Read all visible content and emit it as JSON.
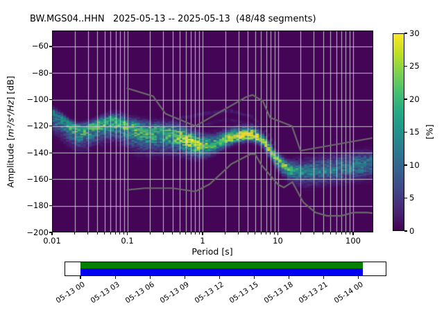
{
  "figure": {
    "title": "BW.MGS04..HHN   2025-05-13 -- 2025-05-13  (48/48 segments)"
  },
  "axes": {
    "xlabel": "Period [s]",
    "ylabel_prefix": "Amplitude [",
    "ylabel_math": "m²/s⁴/Hz",
    "ylabel_suffix": "] [dB]",
    "x_major_ticks": [
      {
        "value": 0.01,
        "label": "0.01"
      },
      {
        "value": 0.1,
        "label": "0.1"
      },
      {
        "value": 1,
        "label": "1"
      },
      {
        "value": 10,
        "label": "10"
      },
      {
        "value": 100,
        "label": "100"
      }
    ],
    "y_ticks": [
      {
        "value": -60,
        "label": "−60"
      },
      {
        "value": -80,
        "label": "−80"
      },
      {
        "value": -100,
        "label": "−100"
      },
      {
        "value": -120,
        "label": "−120"
      },
      {
        "value": -140,
        "label": "−140"
      },
      {
        "value": -160,
        "label": "−160"
      },
      {
        "value": -180,
        "label": "−180"
      },
      {
        "value": -200,
        "label": "−200"
      }
    ]
  },
  "colorbar": {
    "label": "[%]",
    "min": 0,
    "max": 30,
    "ticks": [
      0,
      5,
      10,
      15,
      20,
      25,
      30
    ],
    "cmap": "viridis",
    "cmap_stops": [
      [
        0.0,
        "#440154"
      ],
      [
        0.1,
        "#482475"
      ],
      [
        0.2,
        "#414487"
      ],
      [
        0.3,
        "#355f8d"
      ],
      [
        0.4,
        "#2a788e"
      ],
      [
        0.5,
        "#21918c"
      ],
      [
        0.6,
        "#22a884"
      ],
      [
        0.7,
        "#44bf70"
      ],
      [
        0.8,
        "#7ad151"
      ],
      [
        0.9,
        "#bddf26"
      ],
      [
        1.0,
        "#fde725"
      ]
    ]
  },
  "style": {
    "plot_bg": "#440556",
    "grid_color": "rgba(214,210,220,0.9)",
    "noise_model_color": "#6b6b6b",
    "frame_color": "#000000"
  },
  "chart_data": {
    "type": "heatmap",
    "title": "BW.MGS04..HHN   2025-05-13 -- 2025-05-13  (48/48 segments)",
    "xlabel": "Period [s]",
    "ylabel": "Amplitude [m²/s⁴/Hz] [dB]",
    "x_scale": "log",
    "xlim": [
      0.01,
      185
    ],
    "ylim": [
      -200,
      -48
    ],
    "grid": true,
    "colorbar_label": "[%]",
    "colorbar_range": [
      0,
      30
    ],
    "period_step_octaves": 0.125,
    "db_bin_width": 1,
    "mode_curve_points_period_db_percent": [
      [
        0.01,
        -109.5,
        14
      ],
      [
        0.013,
        -113.5,
        15
      ],
      [
        0.017,
        -118.5,
        17
      ],
      [
        0.023,
        -122,
        19
      ],
      [
        0.03,
        -121,
        19
      ],
      [
        0.042,
        -118,
        19
      ],
      [
        0.06,
        -115.5,
        20
      ],
      [
        0.08,
        -116.5,
        19
      ],
      [
        0.1,
        -119.5,
        20
      ],
      [
        0.14,
        -122,
        20
      ],
      [
        0.2,
        -123.5,
        19
      ],
      [
        0.28,
        -124.5,
        18
      ],
      [
        0.38,
        -125.5,
        19
      ],
      [
        0.48,
        -127.5,
        23
      ],
      [
        0.58,
        -129.5,
        27
      ],
      [
        0.72,
        -132,
        28
      ],
      [
        0.9,
        -134,
        26
      ],
      [
        1.1,
        -135,
        22
      ],
      [
        1.4,
        -134,
        20
      ],
      [
        1.8,
        -131.5,
        22
      ],
      [
        2.3,
        -129,
        25
      ],
      [
        2.9,
        -127.5,
        29
      ],
      [
        3.6,
        -126.8,
        30
      ],
      [
        4.5,
        -126.6,
        30
      ],
      [
        5.4,
        -127.8,
        29
      ],
      [
        6.4,
        -131,
        27
      ],
      [
        7.4,
        -135.5,
        26
      ],
      [
        8.6,
        -140.5,
        25
      ],
      [
        10.0,
        -145.5,
        25
      ],
      [
        12.0,
        -149.5,
        26
      ],
      [
        14.0,
        -152,
        21
      ],
      [
        17.0,
        -153.5,
        16
      ],
      [
        21.0,
        -154,
        13
      ],
      [
        26.0,
        -153.8,
        13
      ],
      [
        33.0,
        -153.2,
        12
      ],
      [
        45.0,
        -152.4,
        12
      ],
      [
        60.0,
        -151.5,
        12
      ],
      [
        80.0,
        -150.5,
        13
      ],
      [
        110,
        -149.5,
        13
      ],
      [
        150,
        -148.5,
        12
      ],
      [
        185,
        -148,
        12
      ]
    ],
    "spread_period_updb_downdb": [
      [
        0.01,
        5,
        16
      ],
      [
        0.02,
        5,
        17
      ],
      [
        0.04,
        6,
        16
      ],
      [
        0.07,
        7,
        16
      ],
      [
        0.1,
        8,
        18
      ],
      [
        0.2,
        9,
        19
      ],
      [
        0.35,
        10,
        17
      ],
      [
        0.55,
        11,
        14
      ],
      [
        0.8,
        11,
        12
      ],
      [
        1.2,
        10,
        9
      ],
      [
        2.0,
        9,
        7
      ],
      [
        3.0,
        8,
        6
      ],
      [
        4.5,
        8,
        6
      ],
      [
        6.0,
        7,
        6
      ],
      [
        8.0,
        6,
        7
      ],
      [
        10,
        6,
        8
      ],
      [
        13,
        7,
        9
      ],
      [
        17,
        9,
        11
      ],
      [
        22,
        11,
        13
      ],
      [
        30,
        12,
        13
      ],
      [
        45,
        12,
        13
      ],
      [
        70,
        12,
        13
      ],
      [
        110,
        12,
        13
      ],
      [
        185,
        12,
        13
      ]
    ],
    "secondary_traces": [
      {
        "percent": 6,
        "width_db": 2,
        "points": [
          [
            0.01,
            -124
          ],
          [
            0.02,
            -134
          ],
          [
            0.04,
            -132
          ],
          [
            0.06,
            -128
          ],
          [
            0.09,
            -130
          ],
          [
            0.15,
            -135
          ],
          [
            0.25,
            -138
          ]
        ]
      },
      {
        "percent": 5,
        "width_db": 2,
        "points": [
          [
            0.1,
            -140
          ],
          [
            0.2,
            -141
          ],
          [
            0.4,
            -141
          ],
          [
            0.7,
            -140
          ],
          [
            1.1,
            -141
          ]
        ]
      },
      {
        "percent": 2.5,
        "width_db": 1.5,
        "points": [
          [
            0.2,
            -120
          ],
          [
            0.5,
            -114
          ],
          [
            1.2,
            -110
          ],
          [
            2.5,
            -108.5
          ],
          [
            4.5,
            -113
          ],
          [
            7,
            -124
          ],
          [
            9,
            -133
          ]
        ]
      },
      {
        "percent": 2,
        "width_db": 1.5,
        "points": [
          [
            0.3,
            -124
          ],
          [
            0.9,
            -120
          ],
          [
            2,
            -115
          ],
          [
            4,
            -118
          ],
          [
            6,
            -126
          ]
        ]
      },
      {
        "percent": 3,
        "width_db": 2,
        "points": [
          [
            14,
            -146
          ],
          [
            25,
            -143
          ],
          [
            50,
            -141.5
          ],
          [
            100,
            -141
          ],
          [
            185,
            -141.5
          ]
        ]
      },
      {
        "percent": 3.5,
        "width_db": 2,
        "points": [
          [
            14,
            -158
          ],
          [
            25,
            -161
          ],
          [
            50,
            -163
          ],
          [
            100,
            -162
          ],
          [
            185,
            -160
          ]
        ]
      }
    ],
    "noise_models": {
      "nhnm_period_db": [
        [
          0.1,
          -91.5
        ],
        [
          0.22,
          -97.4
        ],
        [
          0.32,
          -110.5
        ],
        [
          0.8,
          -120.0
        ],
        [
          3.8,
          -98.0
        ],
        [
          4.6,
          -96.5
        ],
        [
          6.3,
          -101.0
        ],
        [
          7.9,
          -113.5
        ],
        [
          15.4,
          -120.0
        ],
        [
          20.0,
          -138.5
        ],
        [
          354.8,
          -126.0
        ]
      ],
      "nlnm_period_db": [
        [
          0.1,
          -168.0
        ],
        [
          0.17,
          -166.7
        ],
        [
          0.4,
          -166.7
        ],
        [
          0.8,
          -169.2
        ],
        [
          1.24,
          -163.7
        ],
        [
          2.4,
          -148.6
        ],
        [
          4.3,
          -141.1
        ],
        [
          5.0,
          -141.1
        ],
        [
          6.0,
          -149.0
        ],
        [
          10.0,
          -163.8
        ],
        [
          12.0,
          -166.2
        ],
        [
          15.6,
          -162.1
        ],
        [
          21.9,
          -177.5
        ],
        [
          31.6,
          -185.0
        ],
        [
          45.0,
          -187.5
        ],
        [
          70.0,
          -187.5
        ],
        [
          101.0,
          -185.0
        ],
        [
          154.0,
          -185.0
        ],
        [
          328.0,
          -187.5
        ]
      ]
    }
  },
  "timeline": {
    "axis_start_hours": 0,
    "axis_end_hours": 24,
    "bar_start_hours": 0.0,
    "bar_end_hours": 24.35,
    "bar_top_color": "#008000",
    "bar_bottom_color": "#0000f0",
    "tick_labels": [
      "05-13 00",
      "05-13 03",
      "05-13 06",
      "05-13 09",
      "05-13 12",
      "05-13 15",
      "05-13 18",
      "05-13 21",
      "05-14 00"
    ]
  }
}
